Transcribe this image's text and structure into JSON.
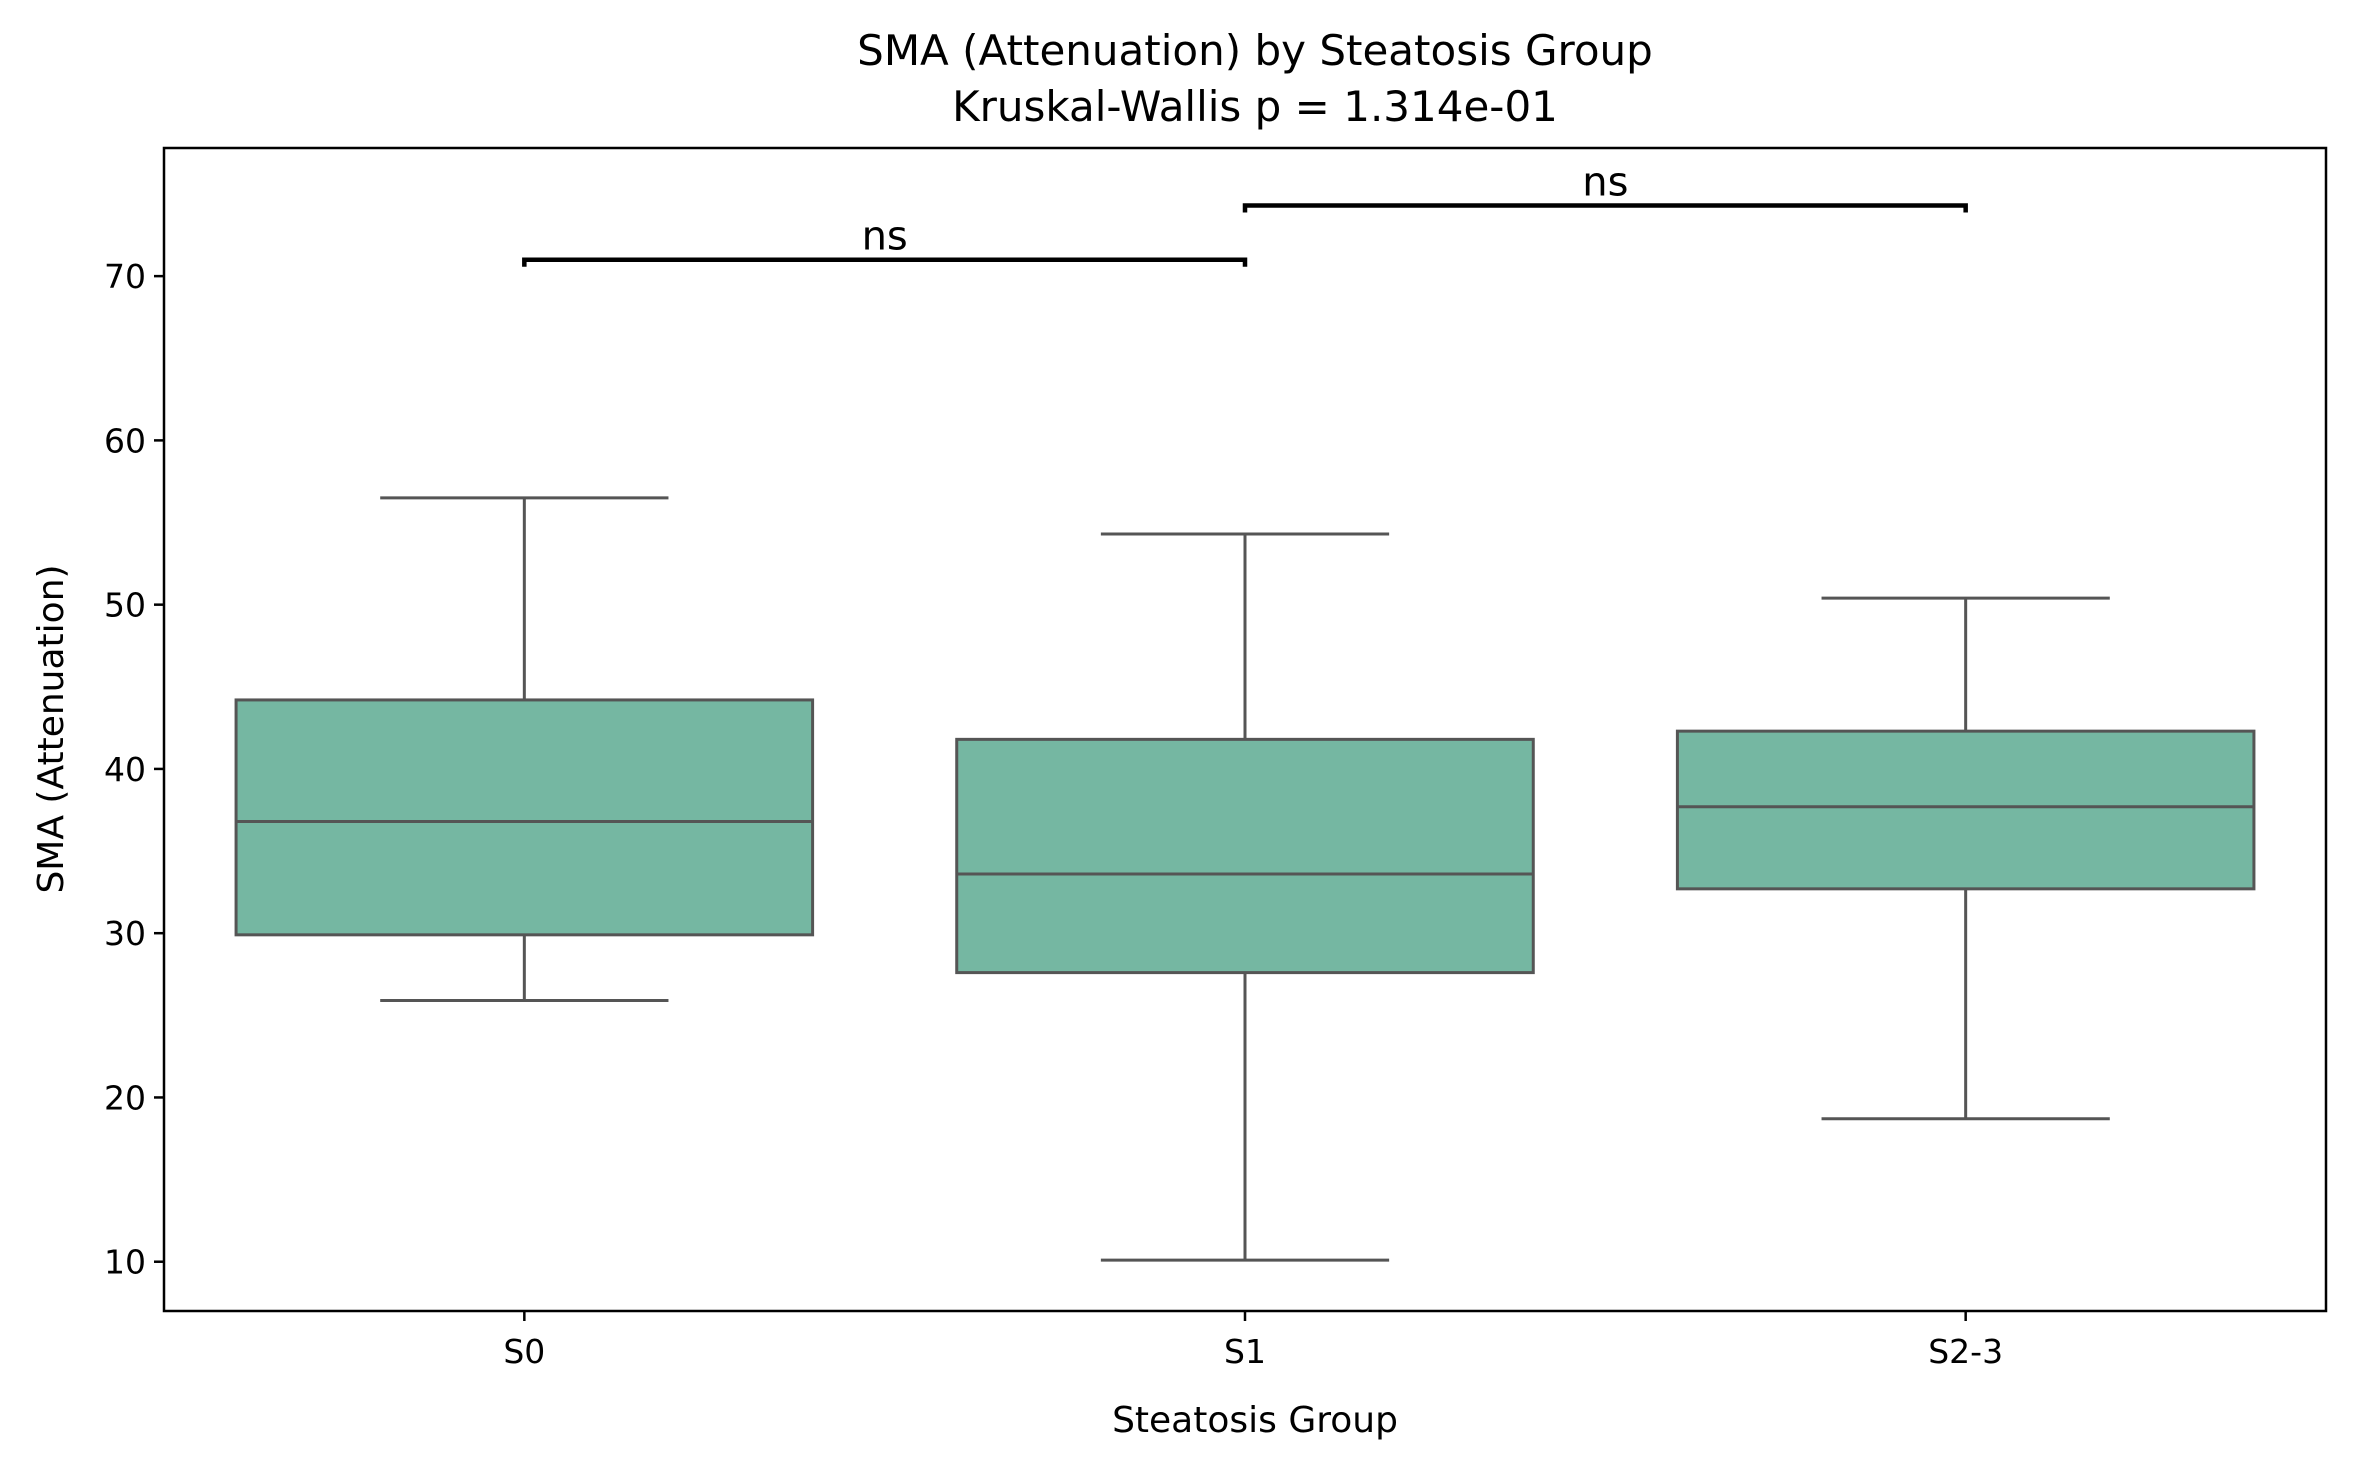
{
  "chart_data": {
    "type": "box",
    "title": "SMA (Attenuation) by Steatosis Group",
    "subtitle": "Kruskal-Wallis p = 1.314e-01",
    "xlabel": "Steatosis Group",
    "ylabel": "SMA (Attenuation)",
    "ylim": [
      7,
      77.8
    ],
    "yticks": [
      10,
      20,
      30,
      40,
      50,
      60,
      70
    ],
    "grid": false,
    "box_color": "#75b7a2",
    "line_color": "#555555",
    "categories": [
      "S0",
      "S1",
      "S2-3"
    ],
    "boxes": [
      {
        "category": "S0",
        "whisker_low": 25.9,
        "q1": 29.9,
        "median": 36.8,
        "q3": 44.2,
        "whisker_high": 56.5
      },
      {
        "category": "S1",
        "whisker_low": 10.1,
        "q1": 27.6,
        "median": 33.6,
        "q3": 41.8,
        "whisker_high": 54.3
      },
      {
        "category": "S2-3",
        "whisker_low": 18.7,
        "q1": 32.7,
        "median": 37.7,
        "q3": 42.3,
        "whisker_high": 50.4
      }
    ],
    "annotations": [
      {
        "from": "S0",
        "to": "S1",
        "y": 71.0,
        "text": "ns"
      },
      {
        "from": "S1",
        "to": "S2-3",
        "y": 74.3,
        "text": "ns"
      }
    ]
  }
}
